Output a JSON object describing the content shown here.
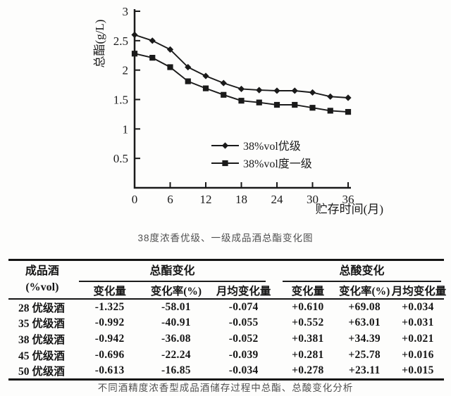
{
  "chart_data": {
    "type": "line",
    "title": "38度浓香优级、一级成品酒总酯变化图",
    "xlabel": "贮存时间(月)",
    "ylabel": "总酯(g/L)",
    "x": [
      0,
      3,
      6,
      9,
      12,
      15,
      18,
      21,
      24,
      27,
      30,
      33,
      36
    ],
    "xlim": [
      0,
      36
    ],
    "ylim": [
      0,
      3
    ],
    "x_ticks": [
      0,
      6,
      12,
      18,
      24,
      30,
      36
    ],
    "y_ticks": [
      0.5,
      1,
      1.5,
      2,
      2.5,
      3
    ],
    "grid": false,
    "legend_position": "inside-lower-middle",
    "series": [
      {
        "name": "38%vol优级",
        "marker": "diamond",
        "values": [
          2.6,
          2.5,
          2.35,
          2.05,
          1.9,
          1.78,
          1.68,
          1.66,
          1.65,
          1.65,
          1.62,
          1.55,
          1.53
        ]
      },
      {
        "name": "38%vol度一级",
        "marker": "square",
        "values": [
          2.28,
          2.21,
          2.05,
          1.81,
          1.69,
          1.58,
          1.48,
          1.45,
          1.41,
          1.41,
          1.36,
          1.31,
          1.29
        ]
      }
    ]
  },
  "chart": {
    "caption": "38度浓香优级、一级成品酒总酯变化图"
  },
  "table": {
    "col1_header_line1": "成品酒",
    "col1_header_line2": "(%vol)",
    "group_headers": [
      "总酯变化",
      "总酸变化"
    ],
    "sub_headers": [
      "变化量",
      "变化率(%)",
      "月均变化量",
      "变化量",
      "变化率(%)",
      "月均变化量"
    ],
    "rows": [
      [
        "28 优级酒",
        "-1.325",
        "-58.01",
        "-0.074",
        "+0.610",
        "+69.08",
        "+0.034"
      ],
      [
        "35 优级酒",
        "-0.992",
        "-40.91",
        "-0.055",
        "+0.552",
        "+63.01",
        "+0.031"
      ],
      [
        "38 优级酒",
        "-0.942",
        "-36.08",
        "-0.052",
        "+0.381",
        "+34.39",
        "+0.021"
      ],
      [
        "45 优级酒",
        "-0.696",
        "-22.24",
        "-0.039",
        "+0.281",
        "+25.78",
        "+0.016"
      ],
      [
        "50 优级酒",
        "-0.613",
        "-16.85",
        "-0.034",
        "+0.278",
        "+23.11",
        "+0.015"
      ]
    ],
    "caption": "不同酒精度浓香型成品酒储存过程中总酯、总酸变化分析"
  },
  "ink_color": "#1a1a1a"
}
